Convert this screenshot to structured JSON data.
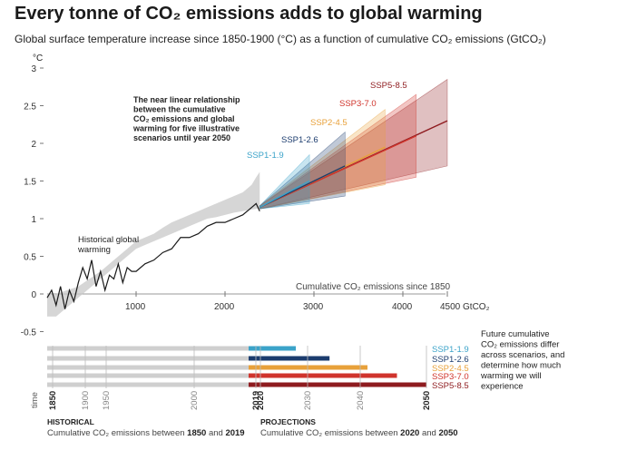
{
  "title": "Every tonne of CO₂ emissions adds to global warming",
  "subtitle": "Global surface temperature increase since 1850-1900 (°C) as a function of cumulative CO₂ emissions (GtCO₂)",
  "colors": {
    "historical_line": "#1a1a1a",
    "historical_band": "#c8c8c8",
    "SSP1-1.9": "#3ba3c9",
    "SSP1-2.6": "#1c3c6e",
    "SSP2-4.5": "#e8a13a",
    "SSP3-7.0": "#d0342c",
    "SSP5-8.5": "#8e1b1f"
  },
  "chart_data": [
    {
      "type": "line",
      "ylabel": "°C",
      "xlabel": "Cumulative CO₂ emissions since 1850",
      "x_unit": "GtCO₂",
      "xlim": [
        0,
        4600
      ],
      "ylim": [
        -0.5,
        3
      ],
      "x_ticks": [
        1000,
        2000,
        3000,
        4000,
        4500
      ],
      "y_ticks": [
        -0.5,
        0,
        0.5,
        1,
        1.5,
        2,
        2.5,
        3
      ],
      "x_tick_labels": [
        "1000",
        "2000",
        "3000",
        "4000",
        "4500 GtCO₂"
      ],
      "y_tick_labels": [
        "-0.5",
        "0",
        "0.5",
        "1",
        "1.5",
        "2",
        "2.5",
        "3"
      ],
      "historical": {
        "label": "Historical global warming",
        "x": [
          0,
          50,
          100,
          150,
          200,
          250,
          300,
          350,
          400,
          450,
          500,
          550,
          600,
          650,
          700,
          750,
          800,
          850,
          900,
          950,
          1000,
          1100,
          1200,
          1300,
          1400,
          1500,
          1600,
          1700,
          1800,
          1900,
          2000,
          2100,
          2200,
          2300,
          2350,
          2390
        ],
        "y": [
          -0.05,
          0.05,
          -0.15,
          0.1,
          -0.2,
          0.05,
          -0.1,
          0.15,
          0.35,
          0.2,
          0.45,
          0.1,
          0.3,
          0.05,
          0.25,
          0.2,
          0.4,
          0.15,
          0.35,
          0.3,
          0.3,
          0.4,
          0.45,
          0.55,
          0.6,
          0.75,
          0.75,
          0.8,
          0.9,
          0.95,
          0.95,
          1.0,
          1.05,
          1.15,
          1.2,
          1.1
        ],
        "band_low": [
          -0.3,
          -0.3,
          -0.3,
          -0.25,
          -0.2,
          -0.15,
          -0.1,
          -0.05,
          0.0,
          0.05,
          0.1,
          0.15,
          0.2,
          0.25,
          0.3,
          0.35,
          0.4,
          0.45,
          0.5,
          0.55,
          0.6,
          0.65,
          0.7,
          0.75,
          0.8,
          0.85,
          0.9,
          0.95,
          1.0,
          1.02,
          1.05,
          1.08,
          1.1,
          1.12,
          1.13,
          1.14
        ],
        "band_high": [
          0.0,
          0.0,
          0.0,
          0.02,
          0.04,
          0.06,
          0.08,
          0.1,
          0.14,
          0.18,
          0.22,
          0.26,
          0.3,
          0.35,
          0.4,
          0.45,
          0.5,
          0.55,
          0.6,
          0.65,
          0.7,
          0.75,
          0.8,
          0.88,
          0.95,
          1.0,
          1.05,
          1.1,
          1.15,
          1.2,
          1.25,
          1.3,
          1.35,
          1.45,
          1.55,
          1.62
        ]
      },
      "scenario_start": {
        "x": 2390,
        "y": 1.15
      },
      "series": [
        {
          "name": "SSP1-1.9",
          "x_end": 2950,
          "y_end": 1.5,
          "low_end": 1.2,
          "high_end": 1.85
        },
        {
          "name": "SSP1-2.6",
          "x_end": 3350,
          "y_end": 1.7,
          "low_end": 1.3,
          "high_end": 2.15
        },
        {
          "name": "SSP2-4.5",
          "x_end": 3800,
          "y_end": 1.95,
          "low_end": 1.45,
          "high_end": 2.45
        },
        {
          "name": "SSP3-7.0",
          "x_end": 4150,
          "y_end": 2.1,
          "low_end": 1.55,
          "high_end": 2.65
        },
        {
          "name": "SSP5-8.5",
          "x_end": 4500,
          "y_end": 2.3,
          "low_end": 1.7,
          "high_end": 2.85
        }
      ],
      "annotation": "The near linear relationship between the cumulative CO₂ emissions and global warming for five illustrative scenarios until year 2050"
    },
    {
      "type": "bar",
      "axis_label": "time",
      "historical_years": [
        "1850",
        "1900",
        "1950",
        "2000",
        "2019"
      ],
      "projection_years": [
        "2020",
        "2030",
        "2040",
        "2050"
      ],
      "series": [
        {
          "name": "SSP1-1.9",
          "historical_end": 2390,
          "projection_end": 2950
        },
        {
          "name": "SSP1-2.6",
          "historical_end": 2390,
          "projection_end": 3350
        },
        {
          "name": "SSP2-4.5",
          "historical_end": 2390,
          "projection_end": 3800
        },
        {
          "name": "SSP3-7.0",
          "historical_end": 2390,
          "projection_end": 4150
        },
        {
          "name": "SSP5-8.5",
          "historical_end": 2390,
          "projection_end": 4500
        }
      ],
      "note": "Future cumulative CO₂ emissions differ across scenarios, and determine how much warming we will experience",
      "historical_caption": {
        "head": "HISTORICAL",
        "text_before": "Cumulative CO₂ emissions between ",
        "y1": "1850",
        "and": " and ",
        "y2": "2019"
      },
      "projection_caption": {
        "head": "PROJECTIONS",
        "text_before": "Cumulative CO₂ emissions between ",
        "y1": "2020",
        "and": " and ",
        "y2": "2050"
      }
    }
  ]
}
